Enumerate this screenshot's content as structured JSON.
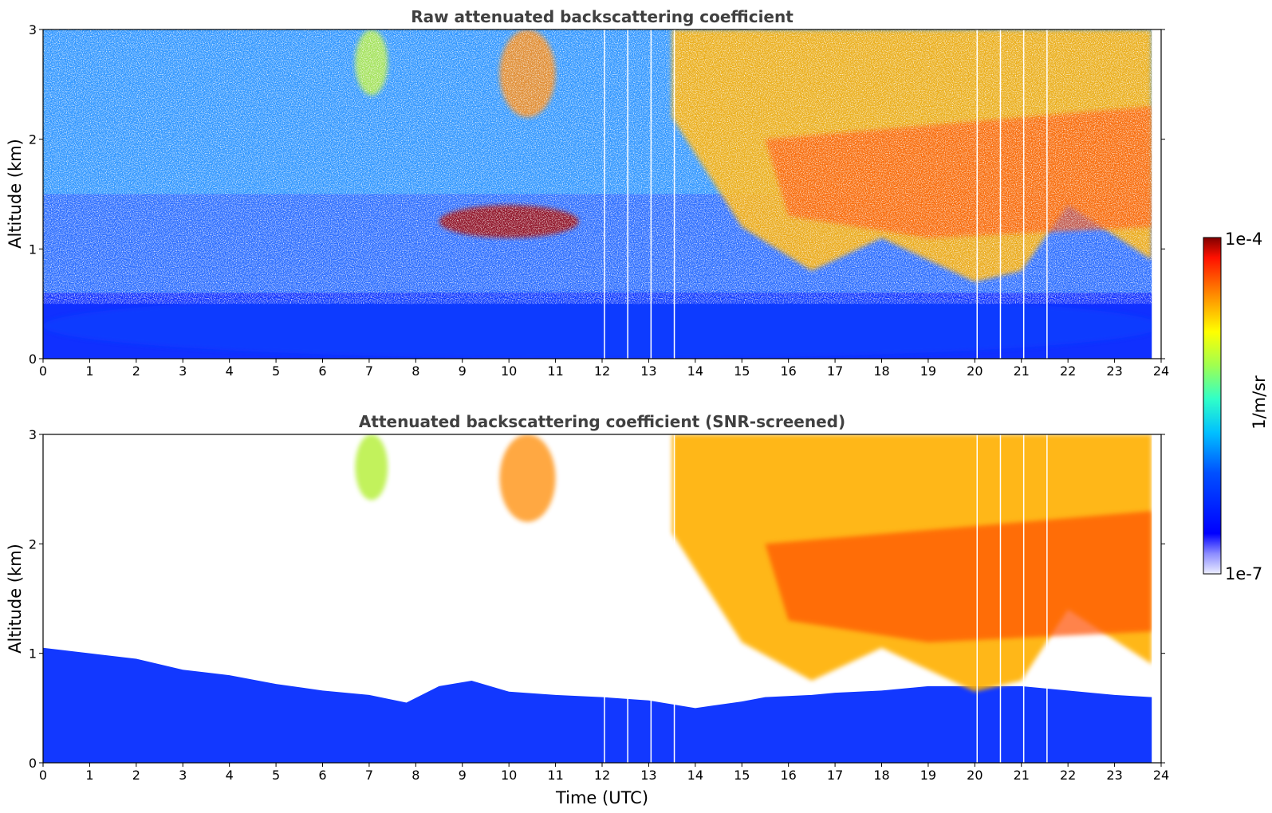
{
  "chart_data": [
    {
      "type": "heatmap",
      "title": "Raw attenuated backscattering coefficient",
      "xlabel": "",
      "ylabel": "Altitude (km)",
      "xlim": [
        0,
        24
      ],
      "ylim": [
        0,
        3
      ],
      "xticks": [
        "0",
        "1",
        "2",
        "3",
        "4",
        "5",
        "6",
        "7",
        "8",
        "9",
        "10",
        "11",
        "12",
        "13",
        "14",
        "15",
        "16",
        "17",
        "18",
        "19",
        "20",
        "21",
        "22",
        "23",
        "24"
      ],
      "yticks": [
        "0",
        "1",
        "2",
        "3"
      ],
      "data_end_time_utc": 23.8,
      "screened": false,
      "gaps_utc": [
        12.05,
        12.55,
        13.05,
        13.55,
        20.05,
        20.55,
        21.05,
        21.55
      ],
      "features": [
        {
          "kind": "boundary-layer aerosol",
          "time_range_utc": [
            0,
            24
          ],
          "altitude_km": [
            0,
            0.6
          ],
          "level": "low"
        },
        {
          "kind": "plume",
          "time_range_utc": [
            6.7,
            7.4
          ],
          "altitude_km": [
            2.4,
            3.0
          ],
          "level": "medium"
        },
        {
          "kind": "plume",
          "time_range_utc": [
            9.8,
            11.0
          ],
          "altitude_km": [
            2.2,
            3.0
          ],
          "level": "high"
        },
        {
          "kind": "descending cloud/precipitation streaks",
          "time_range_utc": [
            13.5,
            23.8
          ],
          "altitude_km": [
            0.7,
            3.0
          ],
          "level": "high"
        },
        {
          "kind": "thin layer",
          "time_range_utc": [
            8.5,
            11.5
          ],
          "altitude_km": [
            1.1,
            1.4
          ],
          "level": "very high"
        }
      ]
    },
    {
      "type": "heatmap",
      "title": "Attenuated backscattering coefficient (SNR-screened)",
      "xlabel": "Time (UTC)",
      "ylabel": "Altitude (km)",
      "xlim": [
        0,
        24
      ],
      "ylim": [
        0,
        3
      ],
      "xticks": [
        "0",
        "1",
        "2",
        "3",
        "4",
        "5",
        "6",
        "7",
        "8",
        "9",
        "10",
        "11",
        "12",
        "13",
        "14",
        "15",
        "16",
        "17",
        "18",
        "19",
        "20",
        "21",
        "22",
        "23",
        "24"
      ],
      "yticks": [
        "0",
        "1",
        "2",
        "3"
      ],
      "data_end_time_utc": 23.8,
      "screened": true,
      "gaps_utc": [
        12.05,
        12.55,
        13.05,
        13.55,
        20.05,
        20.55,
        21.05,
        21.55
      ],
      "screen_boundary_km": [
        [
          0,
          1.05
        ],
        [
          1,
          1.0
        ],
        [
          2,
          0.95
        ],
        [
          3,
          0.85
        ],
        [
          4,
          0.8
        ],
        [
          5,
          0.72
        ],
        [
          6,
          0.66
        ],
        [
          7,
          0.62
        ],
        [
          7.8,
          0.55
        ],
        [
          8.5,
          0.7
        ],
        [
          9.2,
          0.75
        ],
        [
          10,
          0.65
        ],
        [
          11,
          0.62
        ],
        [
          12,
          0.6
        ],
        [
          13,
          0.57
        ],
        [
          14,
          0.5
        ],
        [
          15,
          0.56
        ],
        [
          15.5,
          0.6
        ],
        [
          16.5,
          0.62
        ],
        [
          17,
          0.64
        ],
        [
          18,
          0.66
        ],
        [
          19,
          0.7
        ],
        [
          20,
          0.7
        ],
        [
          21,
          0.7
        ],
        [
          22,
          0.66
        ],
        [
          23,
          0.62
        ],
        [
          23.8,
          0.6
        ]
      ]
    }
  ],
  "colorbar": {
    "label": "1/m/sr",
    "max_label": "1e-4",
    "min_label": "1e-7",
    "scale": "log",
    "range": [
      1e-07,
      0.0001
    ],
    "colormap": "jet"
  }
}
